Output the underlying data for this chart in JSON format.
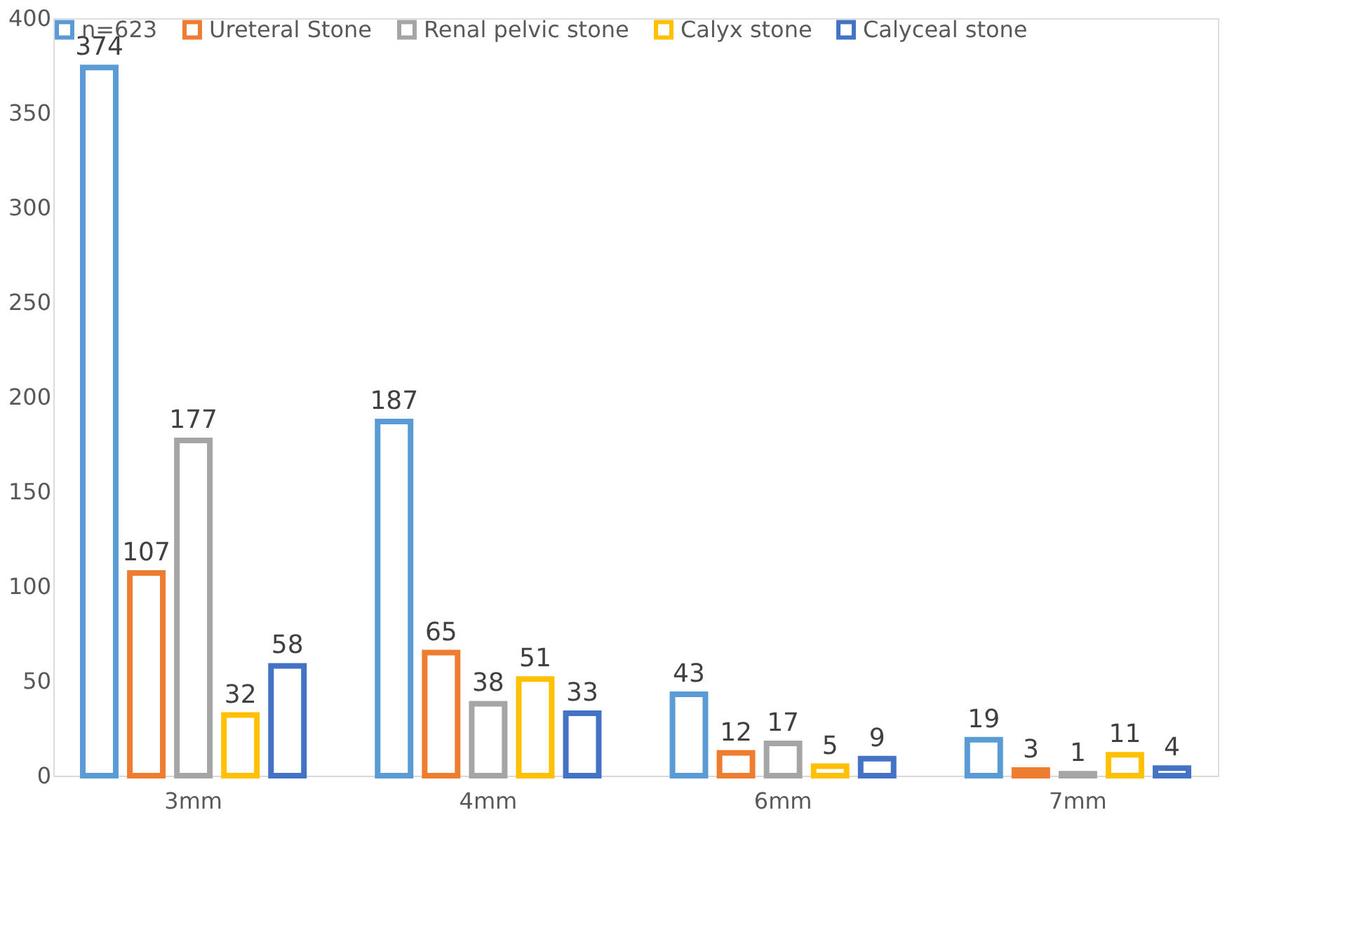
{
  "chart_data": {
    "type": "bar",
    "categories": [
      "3mm",
      "4mm",
      "6mm",
      "7mm"
    ],
    "series": [
      {
        "name": "n=623",
        "color": "#5b9bd5",
        "values": [
          374,
          187,
          43,
          19
        ]
      },
      {
        "name": "Ureteral Stone",
        "color": "#ed7d31",
        "values": [
          107,
          65,
          12,
          3
        ]
      },
      {
        "name": "Renal pelvic stone",
        "color": "#a5a5a5",
        "values": [
          177,
          38,
          17,
          1
        ]
      },
      {
        "name": "Calyx stone",
        "color": "#ffc000",
        "values": [
          32,
          51,
          5,
          11
        ]
      },
      {
        "name": "Calyceal stone",
        "color": "#4472c4",
        "values": [
          58,
          33,
          9,
          4
        ]
      }
    ],
    "ylim": [
      0,
      400
    ],
    "yticks": [
      0,
      50,
      100,
      150,
      200,
      250,
      300,
      350,
      400
    ],
    "grid": false,
    "legend": "top",
    "data_labels": true
  }
}
